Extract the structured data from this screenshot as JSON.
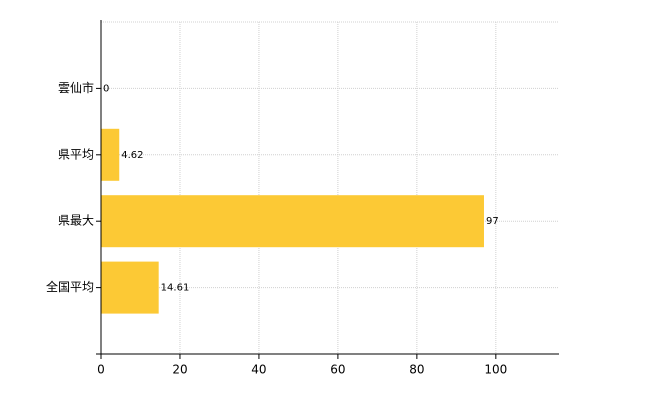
{
  "chart_data": {
    "type": "hbar",
    "categories": [
      "雲仙市",
      "県平均",
      "県最大",
      "全国平均"
    ],
    "values": [
      0,
      4.62,
      97,
      14.61
    ],
    "color": "#fcc935",
    "xlim": [
      0,
      116
    ],
    "xticks": [
      0,
      20,
      40,
      60,
      80,
      100
    ],
    "grid": true
  }
}
